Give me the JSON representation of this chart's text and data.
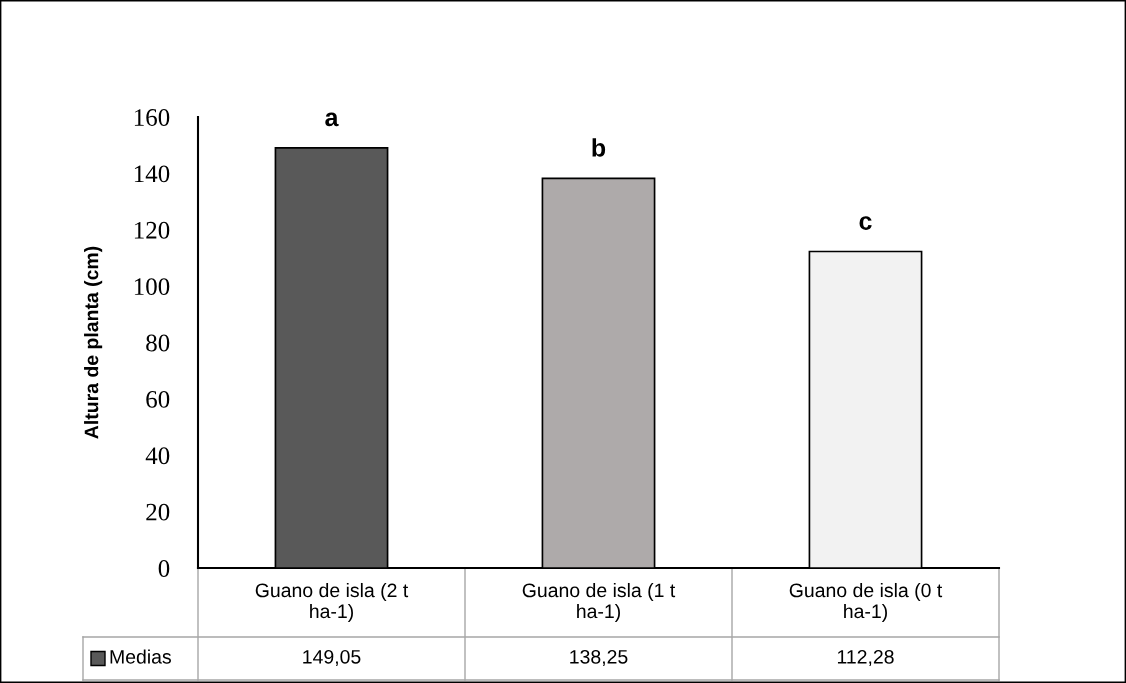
{
  "chart_data": {
    "type": "bar",
    "ylabel": "Altura de planta (cm)",
    "categories": [
      "Guano de isla (2 t ha-1)",
      "Guano de isla (1 t ha-1)",
      "Guano de isla (0 t ha-1)"
    ],
    "series": [
      {
        "name": "Medias",
        "colors": [
          "#595959",
          "#aeaaaa",
          "#f2f2f2"
        ],
        "values": [
          149.05,
          138.25,
          112.28
        ],
        "value_labels": [
          "149,05",
          "138,25",
          "112,28"
        ]
      }
    ],
    "ylim": [
      0,
      160
    ],
    "yticks": [
      0,
      20,
      40,
      60,
      80,
      100,
      120,
      140,
      160
    ],
    "legend": "bottom",
    "annotations": [
      {
        "text": "a",
        "x": "Guano de isla (2 t ha-1)",
        "y": 149.05
      },
      {
        "text": "b",
        "x": "Guano de isla (1 t ha-1)",
        "y": 138.25
      },
      {
        "text": "c",
        "x": "Guano de isla (0 t ha-1)",
        "y": 112.28
      }
    ]
  }
}
